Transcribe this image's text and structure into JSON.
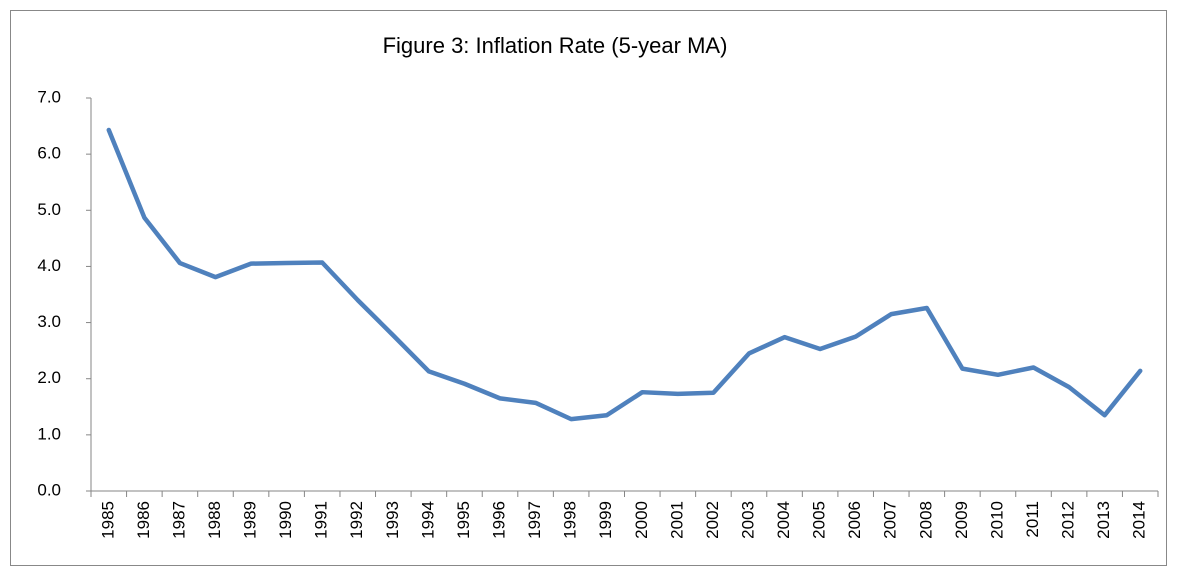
{
  "chart_data": {
    "type": "line",
    "title": "Figure 3: Inflation Rate (5-year MA)",
    "categories": [
      "1985",
      "1986",
      "1987",
      "1988",
      "1989",
      "1990",
      "1991",
      "1992",
      "1993",
      "1994",
      "1995",
      "1996",
      "1997",
      "1998",
      "1999",
      "2000",
      "2001",
      "2002",
      "2003",
      "2004",
      "2005",
      "2006",
      "2007",
      "2008",
      "2009",
      "2010",
      "2011",
      "2012",
      "2013",
      "2014"
    ],
    "series": [
      {
        "color": "#4f81bd",
        "values": [
          6.43,
          4.87,
          4.06,
          3.81,
          4.05,
          4.06,
          4.07,
          3.4,
          2.77,
          2.13,
          1.91,
          1.65,
          1.57,
          1.28,
          1.35,
          1.76,
          1.73,
          1.75,
          2.45,
          2.74,
          2.53,
          2.75,
          3.15,
          3.26,
          2.18,
          2.07,
          2.2,
          1.85,
          1.35,
          2.14
        ]
      }
    ],
    "ylim": [
      0,
      7
    ],
    "yticks": [
      {
        "value": 0,
        "label": "0.0"
      },
      {
        "value": 1,
        "label": "1.0"
      },
      {
        "value": 2,
        "label": "2.0"
      },
      {
        "value": 3,
        "label": "3.0"
      },
      {
        "value": 4,
        "label": "4.0"
      },
      {
        "value": 5,
        "label": "5.0"
      },
      {
        "value": 6,
        "label": "6.0"
      },
      {
        "value": 7,
        "label": "7.0"
      }
    ],
    "grid": false
  }
}
